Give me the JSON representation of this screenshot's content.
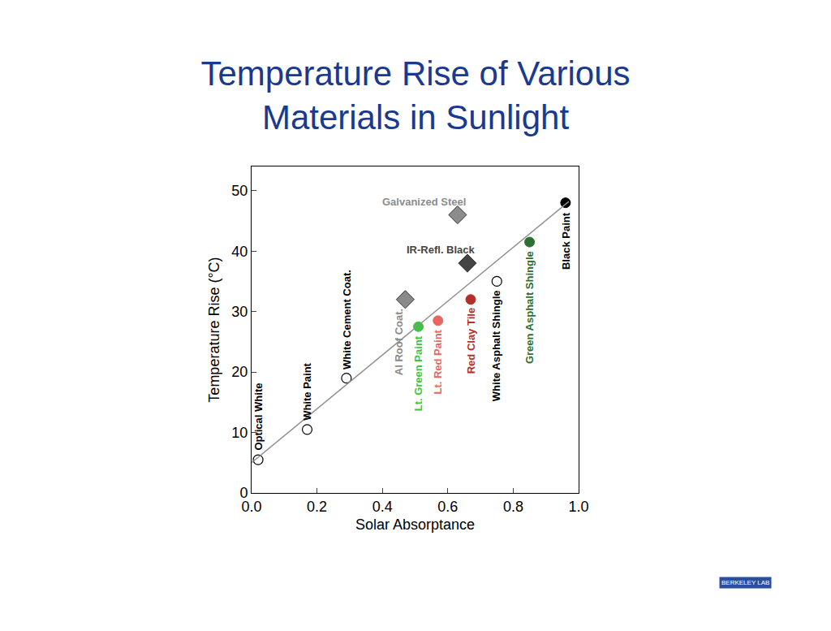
{
  "chart_data": {
    "type": "scatter",
    "title": [
      "Temperature Rise of Various",
      "Materials in Sunlight"
    ],
    "x_label": "Solar Absorptance",
    "y_label": "Temperature Rise (°C)",
    "xlim": [
      0,
      1.0
    ],
    "ylim": [
      0,
      54
    ],
    "xticks": [
      {
        "value": 0,
        "label": "0.0"
      },
      {
        "value": 0.2,
        "label": "0.2"
      },
      {
        "value": 0.4,
        "label": "0.4"
      },
      {
        "value": 0.6,
        "label": "0.6"
      },
      {
        "value": 0.8,
        "label": "0.8"
      },
      {
        "value": 1.0,
        "label": "1.0"
      }
    ],
    "yticks": [
      0,
      10,
      20,
      30,
      40,
      50
    ],
    "grid": false,
    "logo_text": "BERKELEY LAB",
    "series": [
      {
        "type": "scatter",
        "marker": "circle-open",
        "labels": [
          "Optical White",
          "White Paint",
          "White Cement Coat.",
          "White Asphalt Shingle"
        ],
        "x": [
          0.02,
          0.17,
          0.29,
          0.75
        ],
        "values": [
          5.5,
          10.5,
          19,
          35
        ],
        "colors": [
          "#000000",
          "#000000",
          "#000000",
          "#000000"
        ]
      },
      {
        "type": "scatter",
        "marker": "circle",
        "labels": [
          "Lt. Green Paint",
          "Lt. Red Paint",
          "Red Clay Tile",
          "Green Asphalt Shingle",
          "Black Paint"
        ],
        "x": [
          0.51,
          0.57,
          0.67,
          0.85,
          0.96
        ],
        "values": [
          27.5,
          28.5,
          32,
          41.5,
          48
        ],
        "colors": [
          "#3ec43e",
          "#e8665f",
          "#b3302a",
          "#2f6e33",
          "#000000"
        ]
      },
      {
        "type": "scatter",
        "marker": "diamond",
        "labels": [
          "Al Roof Coat.",
          "IR-Refl. Black",
          "Galvanized Steel"
        ],
        "x": [
          0.47,
          0.66,
          0.63
        ],
        "values": [
          32,
          38,
          46
        ],
        "colors": [
          "#8a8a8a",
          "#444444",
          "#8c8c8c"
        ]
      },
      {
        "type": "line",
        "line_style": "solid",
        "x": [
          0.0,
          0.97
        ],
        "values": [
          5.0,
          48.2
        ],
        "color": "#8f8f8f"
      }
    ]
  }
}
